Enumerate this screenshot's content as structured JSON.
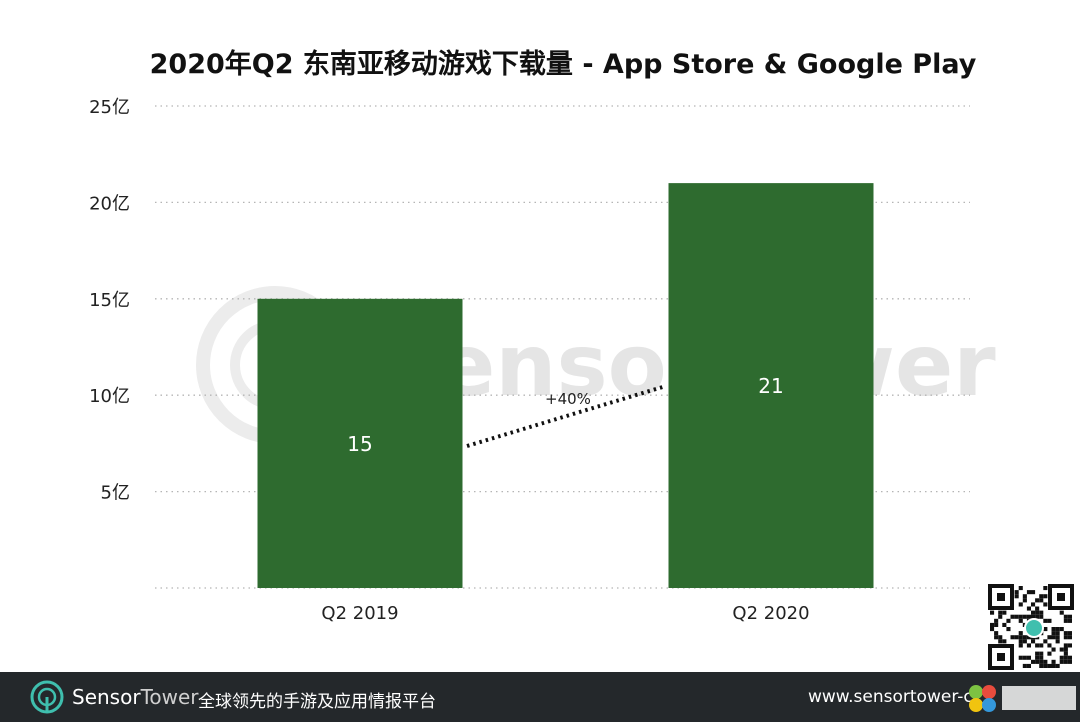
{
  "chart_data": {
    "type": "bar",
    "title": "2020年Q2 东南亚移动游戏下载量 - App Store & Google Play",
    "categories": [
      "Q2  2019",
      "Q2 2020"
    ],
    "values": [
      15,
      21
    ],
    "data_labels": [
      "15",
      "21"
    ],
    "y_ticks": [
      5,
      10,
      15,
      20,
      25
    ],
    "y_tick_labels": [
      "5亿",
      "10亿",
      "15亿",
      "20亿",
      "25亿"
    ],
    "ylim": [
      0,
      25
    ],
    "xlabel": "",
    "ylabel": "",
    "grid": "horizontal dotted",
    "bar_color": "#2e6b2f",
    "annotation": "+40%"
  },
  "watermark": {
    "text": "SensorTower"
  },
  "footer": {
    "brand_part1": "Sensor",
    "brand_part2": "Tower",
    "slogan": "全球领先的手游及应用情报平台",
    "url": "www.sensortower-c"
  },
  "colors": {
    "footer_bg": "#24282b",
    "brand_teal": "#3fbfae",
    "grid": "#b5b5b5"
  },
  "icons": [
    "sensortower-logo-icon",
    "qr-code",
    "site-badge"
  ]
}
